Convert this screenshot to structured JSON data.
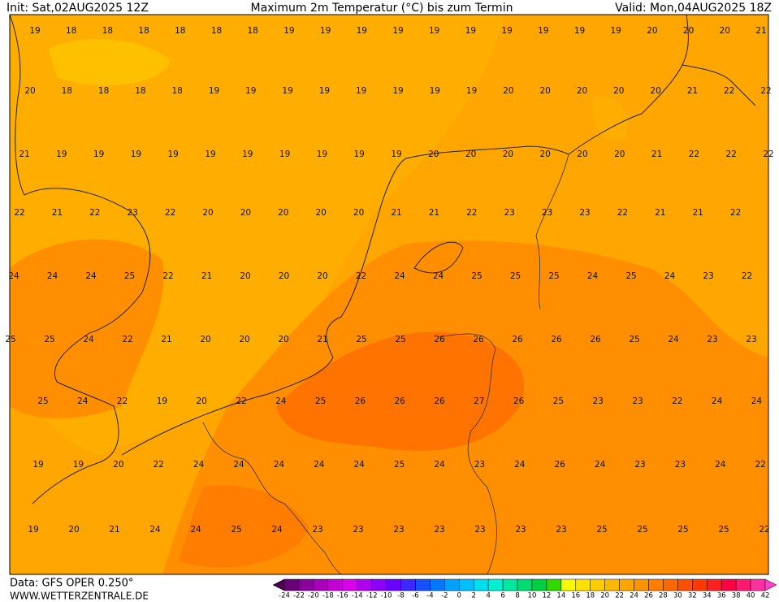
{
  "header": {
    "init": "Init: Sat,02AUG2025 12Z",
    "title": "Maximum 2m Temperatur (°C) bis zum Termin",
    "valid": "Valid: Mon,04AUG2025 18Z"
  },
  "map": {
    "rows": [
      [
        19,
        18,
        18,
        18,
        18,
        18,
        18,
        19,
        19,
        19,
        19,
        19,
        19,
        19,
        19,
        19,
        19,
        20,
        20,
        20,
        21
      ],
      [
        20,
        18,
        18,
        18,
        18,
        19,
        19,
        19,
        19,
        19,
        19,
        19,
        19,
        20,
        20,
        20,
        20,
        20,
        21,
        22,
        22
      ],
      [
        21,
        19,
        19,
        19,
        19,
        19,
        19,
        19,
        19,
        19,
        19,
        20,
        20,
        20,
        20,
        20,
        20,
        21,
        22,
        22,
        22
      ],
      [
        22,
        21,
        22,
        23,
        22,
        20,
        20,
        20,
        20,
        20,
        21,
        21,
        22,
        23,
        23,
        23,
        22,
        21,
        21,
        22
      ],
      [
        24,
        24,
        24,
        25,
        22,
        21,
        20,
        20,
        20,
        22,
        24,
        24,
        25,
        25,
        25,
        24,
        25,
        24,
        23,
        22
      ],
      [
        25,
        25,
        24,
        22,
        21,
        20,
        20,
        20,
        21,
        25,
        25,
        26,
        26,
        26,
        26,
        26,
        25,
        24,
        23,
        23
      ],
      [
        25,
        24,
        22,
        19,
        20,
        22,
        24,
        25,
        26,
        26,
        26,
        27,
        26,
        25,
        23,
        23,
        22,
        24,
        24
      ],
      [
        19,
        19,
        20,
        22,
        24,
        24,
        24,
        24,
        24,
        25,
        24,
        23,
        24,
        26,
        24,
        23,
        23,
        24,
        22
      ],
      [
        19,
        20,
        21,
        24,
        24,
        25,
        24,
        23,
        23,
        23,
        23,
        23,
        23,
        23,
        25,
        25,
        25,
        25,
        22
      ]
    ]
  },
  "footer": {
    "data": "Data: GFS OPER 0.250°",
    "site": "WWW.WETTERZENTRALE.DE"
  },
  "colorbar": {
    "labels": [
      -24,
      -22,
      -20,
      -18,
      -16,
      -14,
      -12,
      -10,
      -8,
      -6,
      -4,
      -2,
      0,
      2,
      4,
      6,
      8,
      10,
      12,
      14,
      16,
      18,
      20,
      22,
      24,
      26,
      28,
      30,
      32,
      34,
      36,
      38,
      40,
      42
    ],
    "colors": [
      "#4b0050",
      "#6a0078",
      "#8a009a",
      "#a800b8",
      "#c400d4",
      "#d800e8",
      "#b000f0",
      "#8c00f8",
      "#6a00ff",
      "#3c28ff",
      "#1450ff",
      "#0078ff",
      "#00a0ff",
      "#00c0ff",
      "#00dcf0",
      "#00f0d0",
      "#00e8a0",
      "#00dc70",
      "#00d040",
      "#30d800",
      "#f8f800",
      "#ffe000",
      "#ffcc00",
      "#ffb800",
      "#ffa500",
      "#ff9200",
      "#ff7d00",
      "#ff6800",
      "#ff5000",
      "#ff3800",
      "#ff2020",
      "#ff0040",
      "#ff1870",
      "#ff30a0",
      "#ff40c8"
    ]
  }
}
